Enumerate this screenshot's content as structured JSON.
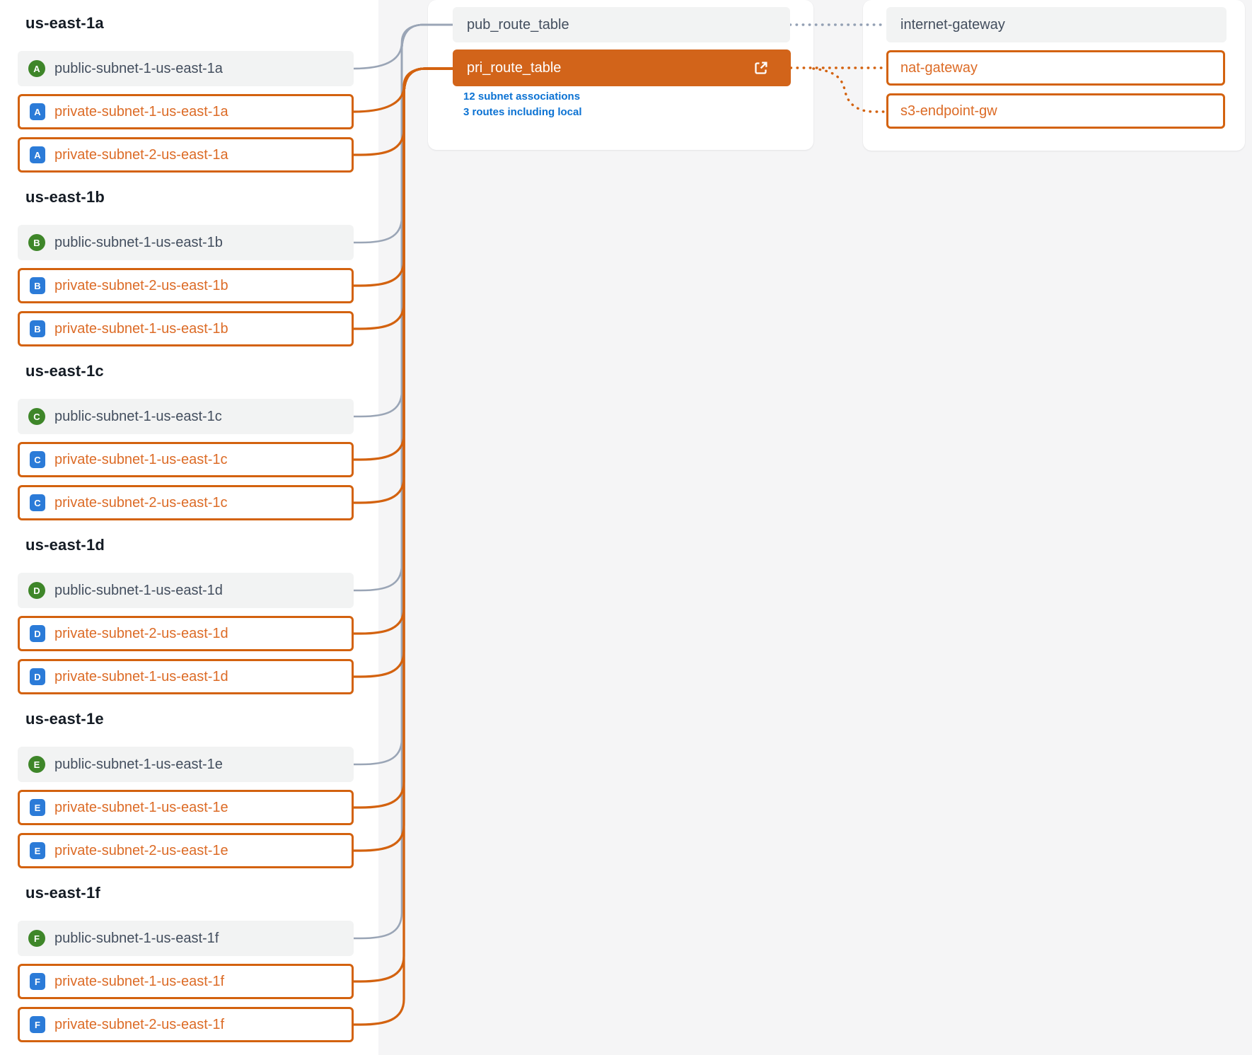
{
  "zones": [
    {
      "name": "us-east-1a",
      "badge": "A",
      "subnets": [
        {
          "label": "public-subnet-1-us-east-1a",
          "type": "public"
        },
        {
          "label": "private-subnet-1-us-east-1a",
          "type": "private"
        },
        {
          "label": "private-subnet-2-us-east-1a",
          "type": "private"
        }
      ]
    },
    {
      "name": "us-east-1b",
      "badge": "B",
      "subnets": [
        {
          "label": "public-subnet-1-us-east-1b",
          "type": "public"
        },
        {
          "label": "private-subnet-2-us-east-1b",
          "type": "private"
        },
        {
          "label": "private-subnet-1-us-east-1b",
          "type": "private"
        }
      ]
    },
    {
      "name": "us-east-1c",
      "badge": "C",
      "subnets": [
        {
          "label": "public-subnet-1-us-east-1c",
          "type": "public"
        },
        {
          "label": "private-subnet-1-us-east-1c",
          "type": "private"
        },
        {
          "label": "private-subnet-2-us-east-1c",
          "type": "private"
        }
      ]
    },
    {
      "name": "us-east-1d",
      "badge": "D",
      "subnets": [
        {
          "label": "public-subnet-1-us-east-1d",
          "type": "public"
        },
        {
          "label": "private-subnet-2-us-east-1d",
          "type": "private"
        },
        {
          "label": "private-subnet-1-us-east-1d",
          "type": "private"
        }
      ]
    },
    {
      "name": "us-east-1e",
      "badge": "E",
      "subnets": [
        {
          "label": "public-subnet-1-us-east-1e",
          "type": "public"
        },
        {
          "label": "private-subnet-1-us-east-1e",
          "type": "private"
        },
        {
          "label": "private-subnet-2-us-east-1e",
          "type": "private"
        }
      ]
    },
    {
      "name": "us-east-1f",
      "badge": "F",
      "subnets": [
        {
          "label": "public-subnet-1-us-east-1f",
          "type": "public"
        },
        {
          "label": "private-subnet-1-us-east-1f",
          "type": "private"
        },
        {
          "label": "private-subnet-2-us-east-1f",
          "type": "private"
        }
      ]
    }
  ],
  "route_tables": {
    "pub": {
      "label": "pub_route_table"
    },
    "pri": {
      "label": "pri_route_table",
      "open_icon": "external-link-icon",
      "subnet_associations": "12 subnet associations",
      "routes_summary": "3 routes including local"
    }
  },
  "gateways": {
    "internet": {
      "label": "internet-gateway"
    },
    "nat": {
      "label": "nat-gateway"
    },
    "s3": {
      "label": "s3-endpoint-gw"
    }
  },
  "colors": {
    "accent_orange": "#d3620f",
    "selected_fill": "#d2641a",
    "wire_slate": "#9aa5b6",
    "link_blue": "#0b72d3",
    "badge_green": "#3e8629",
    "badge_blue": "#2b7bd8"
  }
}
